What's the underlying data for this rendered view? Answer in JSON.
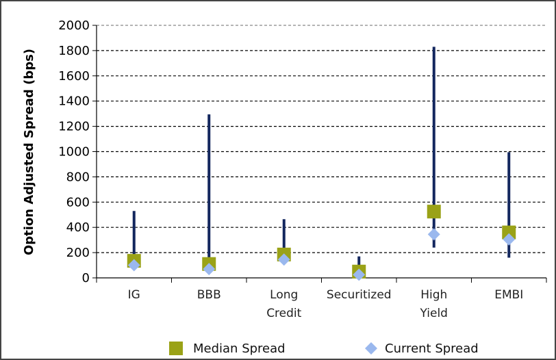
{
  "chart_data": {
    "type": "range",
    "title": "",
    "xlabel": "",
    "ylabel": "Option Adjusted Spread (bps)",
    "ylim": [
      0,
      2000
    ],
    "yticks": [
      "0",
      "200",
      "400",
      "600",
      "800",
      "1000",
      "1200",
      "1400",
      "1600",
      "1800",
      "2000"
    ],
    "grid": "dashed horizontal",
    "legend_position": "bottom",
    "categories": [
      {
        "lines": [
          "IG"
        ]
      },
      {
        "lines": [
          "BBB"
        ]
      },
      {
        "lines": [
          "Long",
          "Credit"
        ]
      },
      {
        "lines": [
          "Securitized"
        ]
      },
      {
        "lines": [
          "High",
          "Yield"
        ]
      },
      {
        "lines": [
          "EMBI"
        ]
      }
    ],
    "ranges": [
      {
        "low": 95,
        "high": 530
      },
      {
        "low": 75,
        "high": 1295
      },
      {
        "low": 130,
        "high": 465
      },
      {
        "low": 10,
        "high": 170
      },
      {
        "low": 240,
        "high": 1830
      },
      {
        "low": 160,
        "high": 995
      }
    ],
    "series": [
      {
        "name": "Median Spread",
        "marker": "square",
        "color": "#9aa217",
        "values": [
          135,
          110,
          185,
          50,
          525,
          360
        ]
      },
      {
        "name": "Current Spread",
        "marker": "diamond",
        "color": "#9ab8ee",
        "values": [
          100,
          70,
          145,
          25,
          345,
          305
        ]
      }
    ],
    "range_color": "#13275e"
  }
}
